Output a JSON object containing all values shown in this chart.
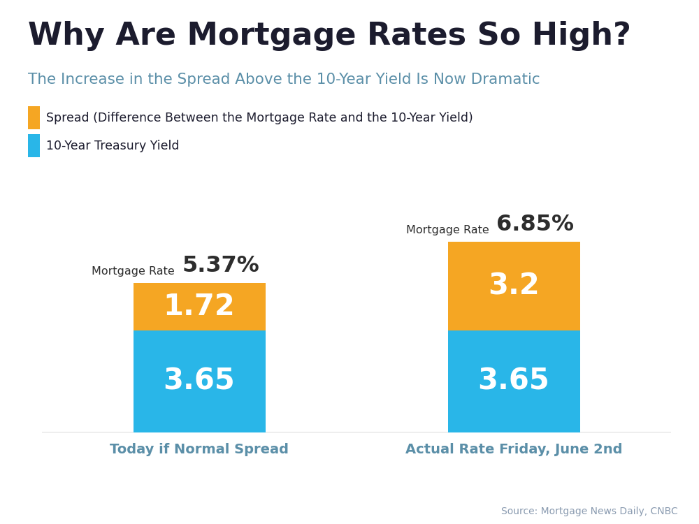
{
  "title": "Why Are Mortgage Rates So High?",
  "subtitle": "The Increase in the Spread Above the 10-Year Yield Is Now Dramatic",
  "title_color": "#1c1c2e",
  "subtitle_color": "#5b8fa8",
  "background_color": "#ffffff",
  "top_bar_color": "#29c5e6",
  "categories": [
    "Today if Normal Spread",
    "Actual Rate Friday, June 2nd"
  ],
  "category_color": "#5b8fa8",
  "treasury_yield": [
    3.65,
    3.65
  ],
  "spread": [
    1.72,
    3.2
  ],
  "spread_labels": [
    "1.72",
    "3.2"
  ],
  "treasury_labels": [
    "3.65",
    "3.65"
  ],
  "mortgage_rates": [
    "5.37%",
    "6.85%"
  ],
  "bar_yield_color": "#29b6e8",
  "bar_spread_color": "#f5a623",
  "bar_label_color": "#ffffff",
  "mortgage_label_color": "#2d2d2d",
  "mortgage_rate_prefix": "Mortgage Rate",
  "source_text": "Source: Mortgage News Daily, CNBC",
  "source_color": "#8a9bb0",
  "legend_spread_label": "Spread (Difference Between the Mortgage Rate and the 10-Year Yield)",
  "legend_yield_label": "10-Year Treasury Yield",
  "legend_spread_color": "#f5a623",
  "legend_yield_color": "#29b6e8",
  "ylim": [
    0,
    9.5
  ],
  "bar_width": 0.42
}
